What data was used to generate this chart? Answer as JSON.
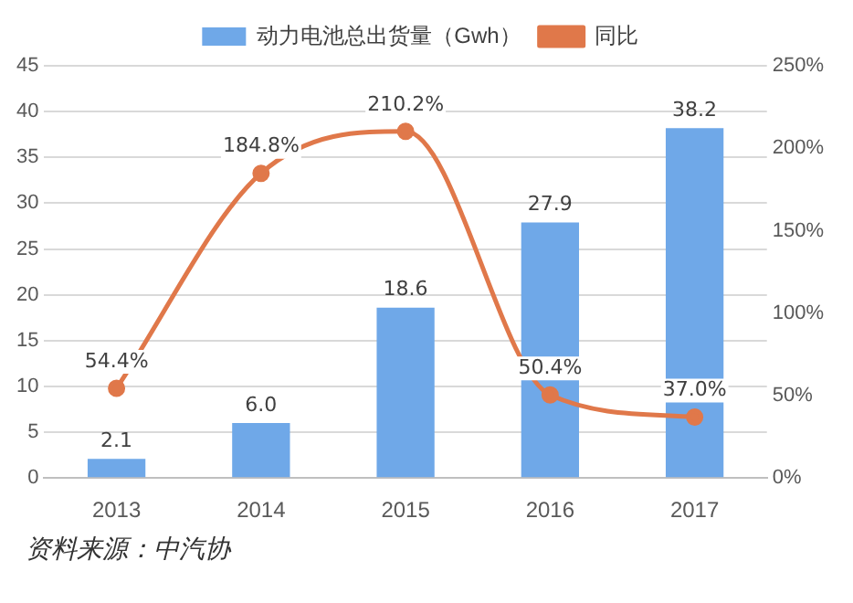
{
  "chart_data": {
    "type": "bar",
    "categories": [
      "2013",
      "2014",
      "2015",
      "2016",
      "2017"
    ],
    "series": [
      {
        "name": "动力电池总出货量（Gwh）",
        "color": "#6fa8e8",
        "values": [
          2.1,
          6.0,
          18.6,
          27.9,
          38.2
        ],
        "value_labels": [
          "2.1",
          "6.0",
          "18.6",
          "27.9",
          "38.2"
        ]
      },
      {
        "name": "同比",
        "type": "line",
        "axis": "y2",
        "color": "#e0784a",
        "values": [
          54.4,
          184.8,
          210.2,
          50.4,
          37.0
        ],
        "value_labels": [
          "54.4%",
          "184.8%",
          "210.2%",
          "50.4%",
          "37.0%"
        ]
      }
    ],
    "ylim": [
      0,
      45
    ],
    "yticks": [
      0,
      5,
      10,
      15,
      20,
      25,
      30,
      35,
      40,
      45
    ],
    "y2lim": [
      0,
      250
    ],
    "y2ticks": [
      {
        "value": 0,
        "label": "0%"
      },
      {
        "value": 50,
        "label": "50%"
      },
      {
        "value": 100,
        "label": "100%"
      },
      {
        "value": 150,
        "label": "150%"
      },
      {
        "value": 200,
        "label": "200%"
      },
      {
        "value": 250,
        "label": "250%"
      }
    ],
    "grid": "y",
    "legend": "top",
    "marker": "circle",
    "line_style": "solid",
    "annotations": [
      "资料来源：中汽协"
    ]
  }
}
